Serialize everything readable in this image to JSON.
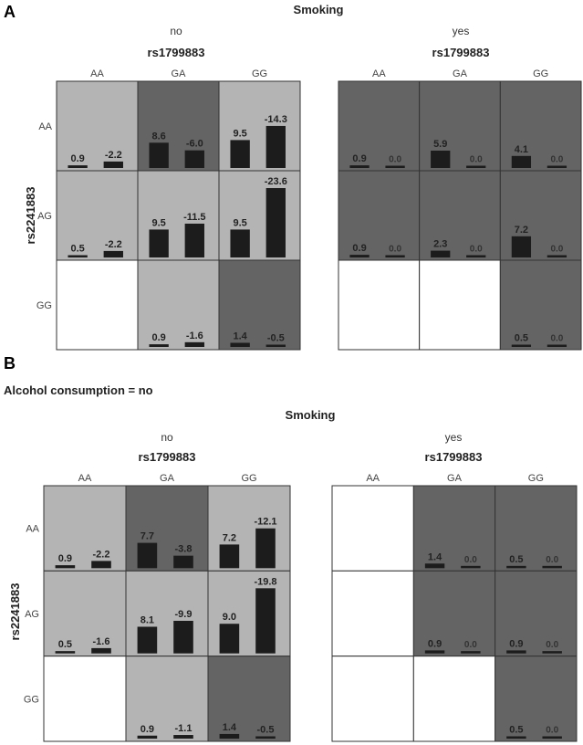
{
  "chart_data": [
    {
      "type": "bar",
      "panel": "A",
      "title": "Smoking",
      "xlabel": "rs1799883",
      "ylabel": "rs2241883",
      "col_labels": [
        "AA",
        "GA",
        "GG"
      ],
      "row_labels": [
        "AA",
        "AG",
        "GG"
      ],
      "groups": [
        {
          "name": "no",
          "cells": [
            [
              {
                "shade": "light",
                "v": [
                  0.9,
                  -2.2
                ]
              },
              {
                "shade": "dark",
                "v": [
                  8.6,
                  -6.0
                ]
              },
              {
                "shade": "light",
                "v": [
                  9.5,
                  -14.3
                ]
              }
            ],
            [
              {
                "shade": "light",
                "v": [
                  0.5,
                  -2.2
                ]
              },
              {
                "shade": "light",
                "v": [
                  9.5,
                  -11.5
                ]
              },
              {
                "shade": "light",
                "v": [
                  9.5,
                  -23.6
                ]
              }
            ],
            [
              {
                "shade": "white",
                "v": null
              },
              {
                "shade": "light",
                "v": [
                  0.9,
                  -1.6
                ]
              },
              {
                "shade": "dark",
                "v": [
                  1.4,
                  -0.5
                ]
              }
            ]
          ]
        },
        {
          "name": "yes",
          "cells": [
            [
              {
                "shade": "dark",
                "v": [
                  0.9,
                  0.0
                ]
              },
              {
                "shade": "dark",
                "v": [
                  5.9,
                  0.0
                ]
              },
              {
                "shade": "dark",
                "v": [
                  4.1,
                  0.0
                ]
              }
            ],
            [
              {
                "shade": "dark",
                "v": [
                  0.9,
                  0.0
                ]
              },
              {
                "shade": "dark",
                "v": [
                  2.3,
                  0.0
                ]
              },
              {
                "shade": "dark",
                "v": [
                  7.2,
                  0.0
                ]
              }
            ],
            [
              {
                "shade": "white",
                "v": null
              },
              {
                "shade": "white",
                "v": null
              },
              {
                "shade": "dark",
                "v": [
                  0.5,
                  0.0
                ]
              }
            ]
          ]
        }
      ]
    },
    {
      "type": "bar",
      "panel": "B",
      "condition": "Alcohol consumption = no",
      "title": "Smoking",
      "xlabel": "rs1799883",
      "ylabel": "rs2241883",
      "col_labels": [
        "AA",
        "GA",
        "GG"
      ],
      "row_labels": [
        "AA",
        "AG",
        "GG"
      ],
      "groups": [
        {
          "name": "no",
          "cells": [
            [
              {
                "shade": "light",
                "v": [
                  0.9,
                  -2.2
                ]
              },
              {
                "shade": "dark",
                "v": [
                  7.7,
                  -3.8
                ]
              },
              {
                "shade": "light",
                "v": [
                  7.2,
                  -12.1
                ]
              }
            ],
            [
              {
                "shade": "light",
                "v": [
                  0.5,
                  -1.6
                ]
              },
              {
                "shade": "light",
                "v": [
                  8.1,
                  -9.9
                ]
              },
              {
                "shade": "light",
                "v": [
                  9.0,
                  -19.8
                ]
              }
            ],
            [
              {
                "shade": "white",
                "v": null
              },
              {
                "shade": "light",
                "v": [
                  0.9,
                  -1.1
                ]
              },
              {
                "shade": "dark",
                "v": [
                  1.4,
                  -0.5
                ]
              }
            ]
          ]
        },
        {
          "name": "yes",
          "cells": [
            [
              {
                "shade": "white",
                "v": null
              },
              {
                "shade": "dark",
                "v": [
                  1.4,
                  0.0
                ]
              },
              {
                "shade": "dark",
                "v": [
                  0.5,
                  0.0
                ]
              }
            ],
            [
              {
                "shade": "white",
                "v": null
              },
              {
                "shade": "dark",
                "v": [
                  0.9,
                  0.0
                ]
              },
              {
                "shade": "dark",
                "v": [
                  0.9,
                  0.0
                ]
              }
            ],
            [
              {
                "shade": "white",
                "v": null
              },
              {
                "shade": "white",
                "v": null
              },
              {
                "shade": "dark",
                "v": [
                  0.5,
                  0.0
                ]
              }
            ]
          ]
        }
      ]
    }
  ],
  "colors": {
    "light": "#b4b4b4",
    "dark": "#646464",
    "white": "#ffffff",
    "bar": "#1c1c1c",
    "border": "#333333"
  }
}
